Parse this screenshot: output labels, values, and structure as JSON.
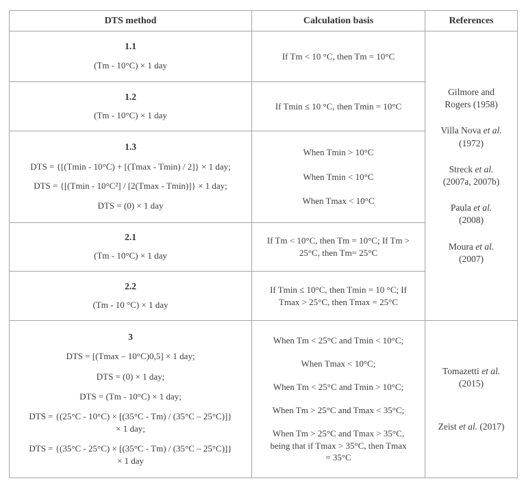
{
  "colors": {
    "border": "#a4a4a4",
    "text": "#3b3b3c",
    "background": "#ffffff"
  },
  "headers": [
    "DTS method",
    "Calculation basis",
    "References"
  ],
  "rows": [
    {
      "id": "1.1",
      "methods": [
        "(Tm - 10°C) × 1 day"
      ],
      "basis": [
        "If Tm < 10 °C, then Tm = 10°C"
      ]
    },
    {
      "id": "1.2",
      "methods": [
        "(Tm - 10°C) × 1 day"
      ],
      "basis": [
        "If Tmin ≤ 10 °C, then Tmin = 10°C"
      ]
    },
    {
      "id": "1.3",
      "methods": [
        "DTS = {[(Tmin - 10°C) + [(Tmax - Tmin) / 2]} × 1 day;",
        "DTS = {[(Tmin - 10°C²] / [2(Tmax - Tmin)]} × 1 day;",
        "DTS = (0) × 1 day"
      ],
      "basis": [
        "When Tmin > 10°C",
        "When Tmin < 10°C",
        "When Tmax < 10°C"
      ]
    },
    {
      "id": "2.1",
      "methods": [
        "(Tm - 10°C) × 1 day"
      ],
      "basis": [
        "If Tm < 10°C, then Tm = 10°C; If Tm >\n25°C, then Tm= 25°C"
      ]
    },
    {
      "id": "2.2",
      "methods": [
        "(Tm - 10 °C) × 1 day"
      ],
      "basis": [
        "If Tmin ≤ 10°C, then Tmin = 10 °C; If\nTmax > 25°C, then Tmax = 25°C"
      ]
    },
    {
      "id": "3",
      "methods": [
        "DTS = [(Tmax – 10°C)0,5] × 1 day;",
        "DTS = (0) × 1 day;",
        "DTS = (Tm - 10°C) × 1 day;",
        "DTS = {(25°C - 10°C) × [(35°C - Tm) / (35°C – 25°C)]}\n× 1 day;",
        "DTS = {(35°C - 25°C) × [(35°C - Tm) / (35°C – 25°C)]}\n× 1 day"
      ],
      "basis": [
        "When Tm < 25°C and Tmin < 10°C;",
        "When Tmax < 10°C;",
        "When Tm < 25°C and Tmin > 10°C;",
        "When Tm > 25°C and Tmax < 35°C;",
        "When Tm > 25°C and Tmax > 35°C,\nbeing that if Tmax > 35°C, then Tmax\n= 35°C"
      ]
    }
  ],
  "references": {
    "group1": [
      {
        "pre": "Gilmore and\nRogers (1958)",
        "it": "",
        "post": ""
      },
      {
        "pre": "Villa Nova ",
        "it": "et al.",
        "post": "\n(1972)"
      },
      {
        "pre": "Streck ",
        "it": "et al.",
        "post": "\n(2007a, 2007b)"
      },
      {
        "pre": "Paula ",
        "it": "et al.",
        "post": "\n(2008)"
      },
      {
        "pre": "Moura ",
        "it": "et al.",
        "post": "\n(2007)"
      }
    ],
    "group2": [
      {
        "pre": "Tomazetti ",
        "it": "et al.",
        "post": "\n(2015)"
      },
      {
        "pre": "Zeist ",
        "it": "et al.",
        "post": " (2017)"
      }
    ]
  }
}
